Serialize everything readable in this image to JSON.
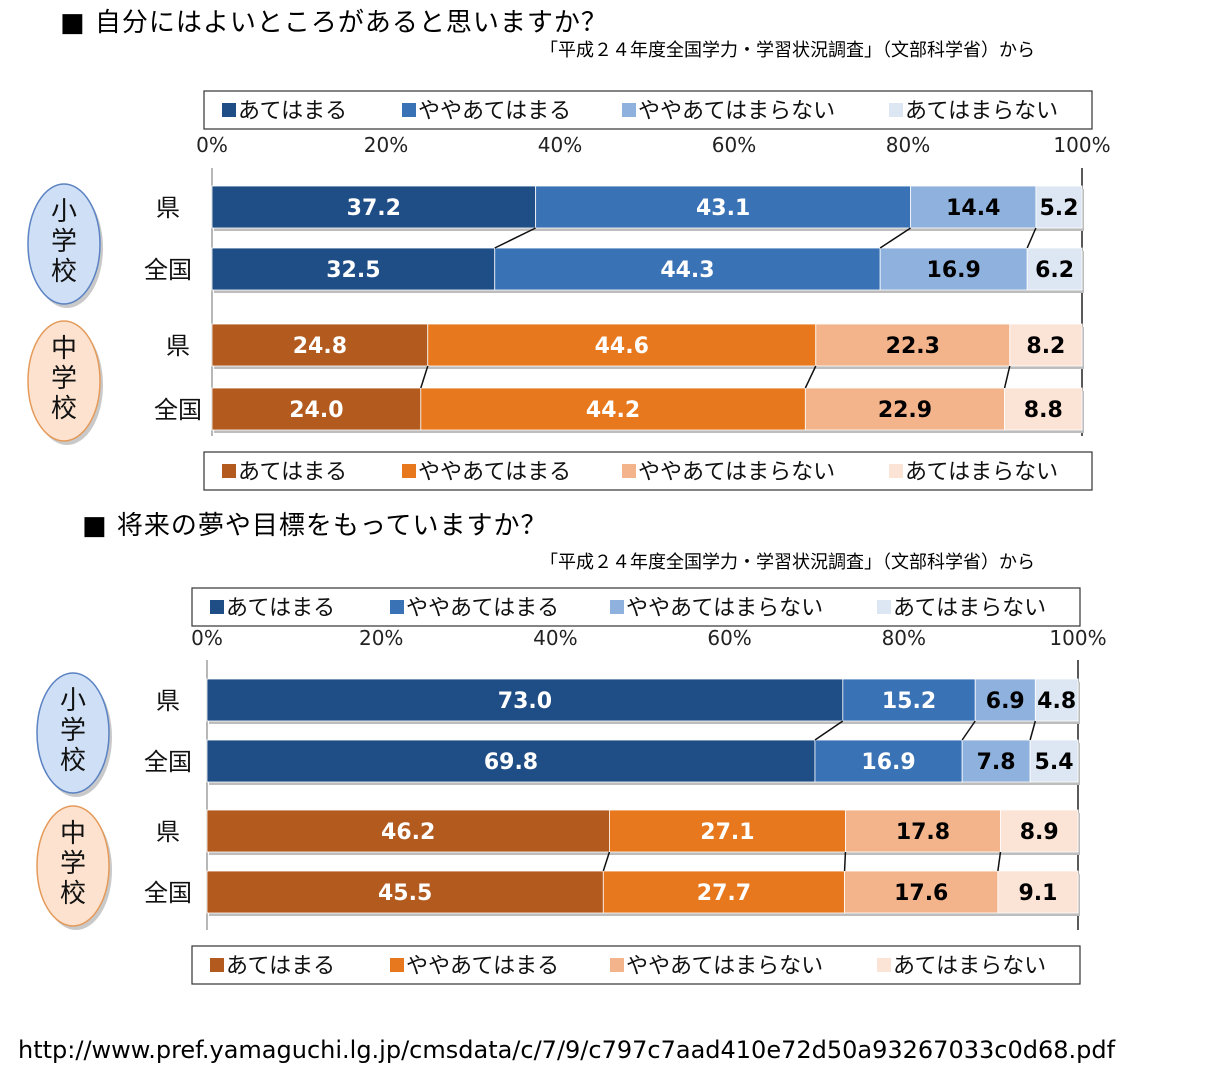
{
  "charts": [
    {
      "title": "■ 自分にはよいところがあると思いますか？",
      "source": "「平成２４年度全国学力・学習状況調査」（文部科学省）から"
    },
    {
      "title": "■ 将来の夢や目標をもっていますか？",
      "source": "「平成２４年度全国学力・学習状況調査」（文部科学省）から"
    }
  ],
  "footer_url": "http://www.pref.yamaguchi.lg.jp/cmsdata/c/7/9/c797c7aad410e72d50a93267033c0d68.pdf",
  "colors": {
    "blue": [
      "#1f4e86",
      "#3a72b6",
      "#8fb1dd",
      "#dde7f3"
    ],
    "orange": [
      "#b35a1f",
      "#e8781e",
      "#f4b48b",
      "#fbe3d6"
    ],
    "blue_text": [
      "#ffffff",
      "#ffffff",
      "#000000",
      "#000000"
    ],
    "orange_text": [
      "#ffffff",
      "#ffffff",
      "#000000",
      "#000000"
    ]
  },
  "chart_data": [
    {
      "type": "bar",
      "orientation": "horizontal-stacked-100",
      "title": "自分にはよいところがあると思いますか？",
      "x_ticks": [
        "0%",
        "20%",
        "40%",
        "60%",
        "80%",
        "100%"
      ],
      "xlim": [
        0,
        100
      ],
      "legend_blue": [
        "あてはまる",
        "ややあてはまる",
        "ややあてはまらない",
        "あてはまらない"
      ],
      "legend_orange": [
        "あてはまる",
        "ややあてはまる",
        "ややあてはまらない",
        "あてはまらない"
      ],
      "groups": [
        {
          "label": "小学校",
          "palette": "blue",
          "rows": [
            {
              "label": "県",
              "values": [
                37.2,
                43.1,
                14.4,
                5.2
              ]
            },
            {
              "label": "全国",
              "values": [
                32.5,
                44.3,
                16.9,
                6.2
              ]
            }
          ]
        },
        {
          "label": "中学校",
          "palette": "orange",
          "rows": [
            {
              "label": "県",
              "values": [
                24.8,
                44.6,
                22.3,
                8.2
              ]
            },
            {
              "label": "全国",
              "values": [
                24.0,
                44.2,
                22.9,
                8.8
              ]
            }
          ]
        }
      ]
    },
    {
      "type": "bar",
      "orientation": "horizontal-stacked-100",
      "title": "将来の夢や目標をもっていますか？",
      "x_ticks": [
        "0%",
        "20%",
        "40%",
        "60%",
        "80%",
        "100%"
      ],
      "xlim": [
        0,
        100
      ],
      "legend_blue": [
        "あてはまる",
        "ややあてはまる",
        "ややあてはまらない",
        "あてはまらない"
      ],
      "legend_orange": [
        "あてはまる",
        "ややあてはまる",
        "ややあてはまらない",
        "あてはまらない"
      ],
      "groups": [
        {
          "label": "小学校",
          "palette": "blue",
          "rows": [
            {
              "label": "県",
              "values": [
                73.0,
                15.2,
                6.9,
                4.8
              ]
            },
            {
              "label": "全国",
              "values": [
                69.8,
                16.9,
                7.8,
                5.4
              ]
            }
          ]
        },
        {
          "label": "中学校",
          "palette": "orange",
          "rows": [
            {
              "label": "県",
              "values": [
                46.2,
                27.1,
                17.8,
                8.9
              ]
            },
            {
              "label": "全国",
              "values": [
                45.5,
                27.7,
                17.6,
                9.1
              ]
            }
          ]
        }
      ]
    }
  ]
}
